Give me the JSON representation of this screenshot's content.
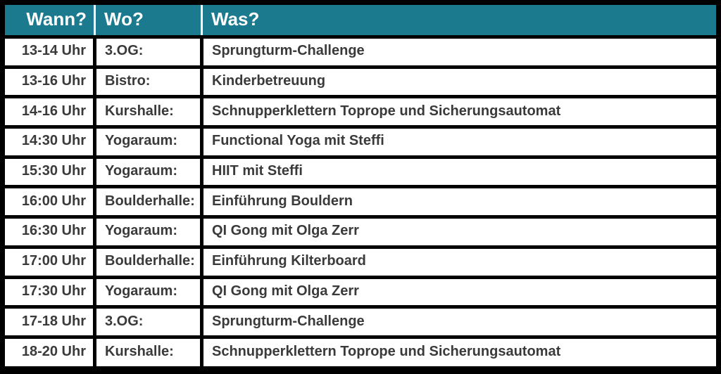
{
  "table": {
    "columns": [
      {
        "key": "wann",
        "label": "Wann?"
      },
      {
        "key": "wo",
        "label": "Wo?"
      },
      {
        "key": "was",
        "label": "Was?"
      }
    ],
    "rows": [
      {
        "wann": "13-14 Uhr",
        "wo": "3.OG:",
        "was": "Sprungturm-Challenge"
      },
      {
        "wann": "13-16 Uhr",
        "wo": "Bistro:",
        "was": "Kinderbetreuung"
      },
      {
        "wann": "14-16 Uhr",
        "wo": "Kurshalle:",
        "was": "Schnupperklettern Toprope und Sicherungsautomat"
      },
      {
        "wann": "14:30 Uhr",
        "wo": "Yogaraum:",
        "was": "Functional Yoga mit Steffi"
      },
      {
        "wann": "15:30 Uhr",
        "wo": "Yogaraum:",
        "was": "HIIT mit Steffi"
      },
      {
        "wann": "16:00 Uhr",
        "wo": "Boulderhalle:",
        "was": "Einführung Bouldern"
      },
      {
        "wann": "16:30 Uhr",
        "wo": "Yogaraum:",
        "was": "QI Gong mit Olga Zerr"
      },
      {
        "wann": "17:00 Uhr",
        "wo": "Boulderhalle:",
        "was": "Einführung Kilterboard"
      },
      {
        "wann": "17:30 Uhr",
        "wo": "Yogaraum:",
        "was": "QI Gong mit Olga Zerr"
      },
      {
        "wann": "17-18 Uhr",
        "wo": "3.OG:",
        "was": "Sprungturm-Challenge"
      },
      {
        "wann": "18-20 Uhr",
        "wo": "Kurshalle:",
        "was": "Schnupperklettern Toprope und Sicherungsautomat"
      }
    ],
    "colors": {
      "header_bg": "#1B7A8E",
      "header_text": "#FFFFFF",
      "row_text": "#3A3A3A",
      "grid": "#000000",
      "row_bg": "#FFFFFF",
      "header_separator": "#FFFFFF"
    }
  },
  "chart_data": {
    "type": "table",
    "title": "",
    "columns": [
      "Wann?",
      "Wo?",
      "Was?"
    ],
    "rows": [
      [
        "13-14 Uhr",
        "3.OG:",
        "Sprungturm-Challenge"
      ],
      [
        "13-16 Uhr",
        "Bistro:",
        "Kinderbetreuung"
      ],
      [
        "14-16 Uhr",
        "Kurshalle:",
        "Schnupperklettern Toprope und Sicherungsautomat"
      ],
      [
        "14:30 Uhr",
        "Yogaraum:",
        "Functional Yoga mit Steffi"
      ],
      [
        "15:30 Uhr",
        "Yogaraum:",
        "HIIT mit Steffi"
      ],
      [
        "16:00 Uhr",
        "Boulderhalle:",
        "Einführung Bouldern"
      ],
      [
        "16:30 Uhr",
        "Yogaraum:",
        "QI Gong mit Olga Zerr"
      ],
      [
        "17:00 Uhr",
        "Boulderhalle:",
        "Einführung Kilterboard"
      ],
      [
        "17:30 Uhr",
        "Yogaraum:",
        "QI Gong mit Olga Zerr"
      ],
      [
        "17-18 Uhr",
        "3.OG:",
        "Sprungturm-Challenge"
      ],
      [
        "18-20 Uhr",
        "Kurshalle:",
        "Schnupperklettern Toprope und Sicherungsautomat"
      ]
    ]
  }
}
